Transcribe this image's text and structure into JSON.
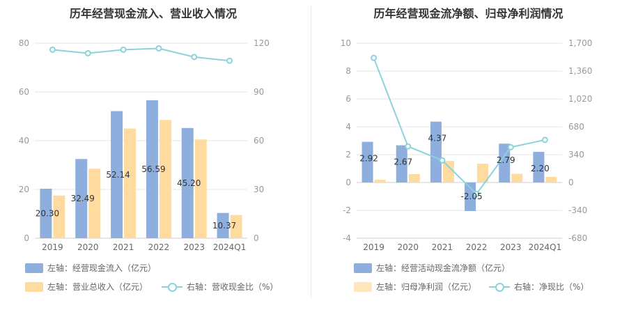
{
  "chart_data": [
    {
      "type": "bar",
      "title": "历年经营现金流入、营业收入情况",
      "categories": [
        "2019",
        "2020",
        "2021",
        "2022",
        "2023",
        "2024Q1"
      ],
      "left_axis": {
        "ticks": [
          "0",
          "20",
          "40",
          "60",
          "80"
        ],
        "range": [
          0,
          80
        ]
      },
      "right_axis": {
        "ticks": [
          "0",
          "30",
          "60",
          "90",
          "120"
        ],
        "range": [
          0,
          120
        ]
      },
      "series": [
        {
          "name": "左轴：经营现金流入（亿元）",
          "type": "bar",
          "axis": "left",
          "color": "#8eaedd",
          "values": [
            20.3,
            32.49,
            52.14,
            56.59,
            45.2,
            10.37
          ],
          "labels": [
            "20.30",
            "32.49",
            "52.14",
            "56.59",
            "45.20",
            "10.37"
          ]
        },
        {
          "name": "左轴：营业总收入（亿元）",
          "type": "bar",
          "axis": "left",
          "color": "#ffdb9f",
          "values": [
            17.5,
            28.5,
            45.0,
            48.5,
            40.5,
            9.5
          ]
        },
        {
          "name": "右轴：营收现金比（%）",
          "type": "line",
          "axis": "right",
          "color": "#8bd3dc",
          "values": [
            116.0,
            113.8,
            116.0,
            116.8,
            111.5,
            109.2
          ]
        }
      ],
      "grid": true
    },
    {
      "type": "bar",
      "title": "历年经营现金流净额、归母净利润情况",
      "categories": [
        "2019",
        "2020",
        "2021",
        "2022",
        "2023",
        "2024Q1"
      ],
      "left_axis": {
        "ticks": [
          "-4",
          "-2",
          "0",
          "2",
          "4",
          "6",
          "8",
          "10"
        ],
        "range": [
          -4,
          10
        ]
      },
      "right_axis": {
        "ticks": [
          "-680",
          "-340",
          "0",
          "340",
          "680",
          "1,020",
          "1,360",
          "1,700"
        ],
        "range": [
          -680,
          1700
        ]
      },
      "series": [
        {
          "name": "左轴：经营活动现金流净额（亿元）",
          "type": "bar",
          "axis": "left",
          "color": "#8eaedd",
          "values": [
            2.92,
            2.67,
            4.37,
            -2.05,
            2.79,
            2.2
          ],
          "labels": [
            "2.92",
            "2.67",
            "4.37",
            "-2.05",
            "2.79",
            "2.20"
          ]
        },
        {
          "name": "左轴：归母净利润（亿元）",
          "type": "bar",
          "axis": "left",
          "color": "#ffdb9f",
          "values": [
            0.2,
            0.6,
            1.55,
            1.35,
            0.62,
            0.4
          ]
        },
        {
          "name": "右轴：净现比（%）",
          "type": "line",
          "axis": "right",
          "color": "#8bd3dc",
          "values": [
            1520,
            440,
            270,
            -140,
            430,
            520
          ]
        }
      ],
      "grid": true
    }
  ]
}
